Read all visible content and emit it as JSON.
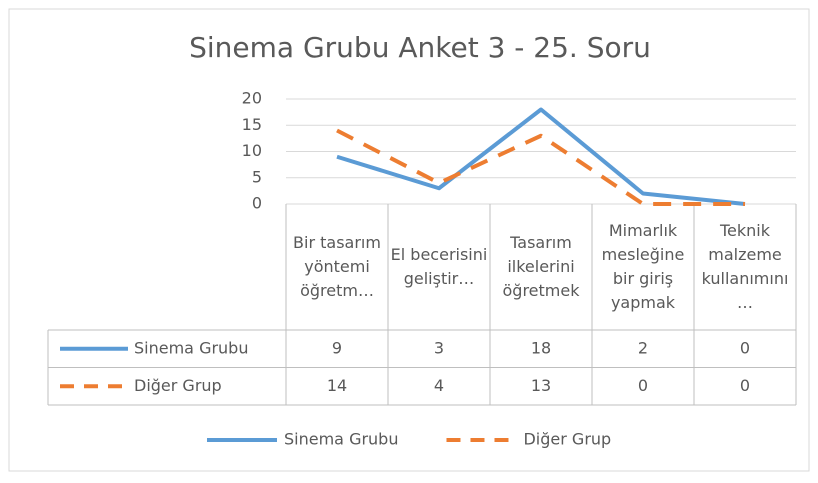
{
  "chart_data": {
    "type": "line",
    "title": "Sinema Grubu Anket 3 - 25. Soru",
    "categories": [
      "Bir tasarım yöntemi öğretm…",
      "El becerisini geliştir…",
      "Tasarım ilkelerini öğretmek",
      "Mimarlık mesleğine bir giriş yapmak",
      "Teknik malzeme kullanımını…"
    ],
    "series": [
      {
        "name": "Sinema Grubu",
        "color": "#5b9bd5",
        "dash": false,
        "values": [
          9,
          3,
          18,
          2,
          0
        ]
      },
      {
        "name": "Diğer Grup",
        "color": "#ed7d31",
        "dash": true,
        "values": [
          14,
          4,
          13,
          0,
          0
        ]
      }
    ],
    "ylim": [
      0,
      20
    ],
    "yticks": [
      0,
      5,
      10,
      15,
      20
    ],
    "grid": true,
    "legend": "bottom",
    "data_table": true
  }
}
